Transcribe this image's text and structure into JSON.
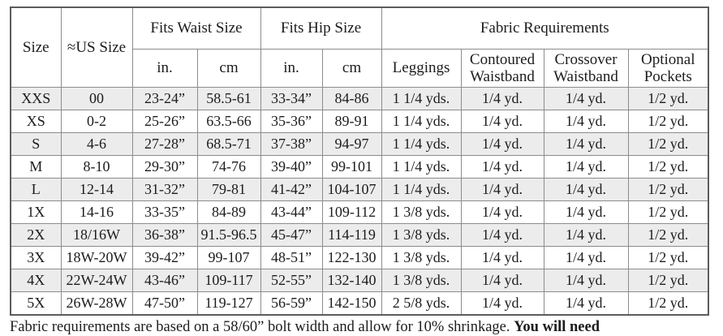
{
  "table": {
    "header": {
      "size": "Size",
      "us_size": "≈US Size",
      "fits_waist": "Fits Waist Size",
      "fits_hip": "Fits Hip Size",
      "fabric_requirements": "Fabric Requirements",
      "sub": {
        "waist_in": "in.",
        "waist_cm": "cm",
        "hip_in": "in.",
        "hip_cm": "cm",
        "leggings": "Leggings",
        "contoured": "Contoured Waistband",
        "crossover": "Crossover Waistband",
        "pockets": "Optional Pockets"
      }
    },
    "rows": [
      {
        "size": "XXS",
        "us_size": "00",
        "waist_in": "23-24”",
        "waist_cm": "58.5-61",
        "hip_in": "33-34”",
        "hip_cm": "84-86",
        "leggings": "1 1/4 yds.",
        "contoured": "1/4 yd.",
        "crossover": "1/4 yd.",
        "pockets": "1/2 yd."
      },
      {
        "size": "XS",
        "us_size": "0-2",
        "waist_in": "25-26”",
        "waist_cm": "63.5-66",
        "hip_in": "35-36”",
        "hip_cm": "89-91",
        "leggings": "1 1/4 yds.",
        "contoured": "1/4 yd.",
        "crossover": "1/4 yd.",
        "pockets": "1/2 yd."
      },
      {
        "size": "S",
        "us_size": "4-6",
        "waist_in": "27-28”",
        "waist_cm": "68.5-71",
        "hip_in": "37-38”",
        "hip_cm": "94-97",
        "leggings": "1 1/4 yds.",
        "contoured": "1/4 yd.",
        "crossover": "1/4 yd.",
        "pockets": "1/2 yd."
      },
      {
        "size": "M",
        "us_size": "8-10",
        "waist_in": "29-30”",
        "waist_cm": "74-76",
        "hip_in": "39-40”",
        "hip_cm": "99-101",
        "leggings": "1 1/4 yds.",
        "contoured": "1/4 yd.",
        "crossover": "1/4 yd.",
        "pockets": "1/2 yd."
      },
      {
        "size": "L",
        "us_size": "12-14",
        "waist_in": "31-32”",
        "waist_cm": "79-81",
        "hip_in": "41-42”",
        "hip_cm": "104-107",
        "leggings": "1 1/4 yds.",
        "contoured": "1/4 yd.",
        "crossover": "1/4 yd.",
        "pockets": "1/2 yd."
      },
      {
        "size": "1X",
        "us_size": "14-16",
        "waist_in": "33-35”",
        "waist_cm": "84-89",
        "hip_in": "43-44”",
        "hip_cm": "109-112",
        "leggings": "1 3/8 yds.",
        "contoured": "1/4 yd.",
        "crossover": "1/4 yd.",
        "pockets": "1/2 yd."
      },
      {
        "size": "2X",
        "us_size": "18/16W",
        "waist_in": "36-38”",
        "waist_cm": "91.5-96.5",
        "hip_in": "45-47”",
        "hip_cm": "114-119",
        "leggings": "1 3/8 yds.",
        "contoured": "1/4 yd.",
        "crossover": "1/4 yd.",
        "pockets": "1/2 yd."
      },
      {
        "size": "3X",
        "us_size": "18W-20W",
        "waist_in": "39-42”",
        "waist_cm": "99-107",
        "hip_in": "48-51”",
        "hip_cm": "122-130",
        "leggings": "1 3/8 yds.",
        "contoured": "1/4 yd.",
        "crossover": "1/4 yd.",
        "pockets": "1/2 yd."
      },
      {
        "size": "4X",
        "us_size": "22W-24W",
        "waist_in": "43-46”",
        "waist_cm": "109-117",
        "hip_in": "52-55”",
        "hip_cm": "132-140",
        "leggings": "1 3/8 yds.",
        "contoured": "1/4 yd.",
        "crossover": "1/4 yd.",
        "pockets": "1/2 yd."
      },
      {
        "size": "5X",
        "us_size": "26W-28W",
        "waist_in": "47-50”",
        "waist_cm": "119-127",
        "hip_in": "56-59”",
        "hip_cm": "142-150",
        "leggings": "2 5/8 yds.",
        "contoured": "1/4 yd.",
        "crossover": "1/4 yd.",
        "pockets": "1/2 yd."
      }
    ]
  },
  "footnote": {
    "text": "Fabric requirements are based on a 58/60” bolt width and allow for 10% shrinkage. ",
    "bold_text": "You will need"
  },
  "colors": {
    "stripe": "#ececec",
    "border_inner": "#8c8c8c",
    "border_outer": "#5c5c5c",
    "text": "#1c1c1c"
  }
}
